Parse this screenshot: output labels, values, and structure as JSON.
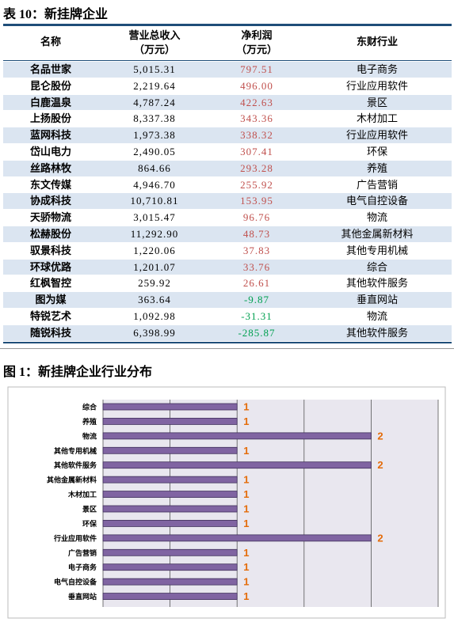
{
  "table": {
    "title": "表 10：新挂牌企业",
    "header": [
      [
        "名称"
      ],
      [
        "营业总收入",
        "（万元）"
      ],
      [
        "净利润",
        "（万元）"
      ],
      [
        "东财行业"
      ]
    ],
    "positive_color": "#c0504d",
    "negative_color": "#00a050",
    "rows": [
      [
        "名品世家",
        "5,015.31",
        "797.51",
        "电子商务"
      ],
      [
        "昆仑股份",
        "2,219.64",
        "496.00",
        "行业应用软件"
      ],
      [
        "白鹿温泉",
        "4,787.24",
        "422.63",
        "景区"
      ],
      [
        "上扬股份",
        "8,337.38",
        "343.36",
        "木材加工"
      ],
      [
        "蓝网科技",
        "1,973.38",
        "338.32",
        "行业应用软件"
      ],
      [
        "岱山电力",
        "2,490.05",
        "307.41",
        "环保"
      ],
      [
        "丝路林牧",
        "864.66",
        "293.28",
        "养殖"
      ],
      [
        "东文传媒",
        "4,946.70",
        "255.92",
        "广告营销"
      ],
      [
        "协成科技",
        "10,710.81",
        "153.95",
        "电气自控设备"
      ],
      [
        "天骄物流",
        "3,015.47",
        "96.76",
        "物流"
      ],
      [
        "松赫股份",
        "11,292.90",
        "48.73",
        "其他金属新材料"
      ],
      [
        "驭景科技",
        "1,220.06",
        "37.83",
        "其他专用机械"
      ],
      [
        "环球优路",
        "1,201.07",
        "33.76",
        "综合"
      ],
      [
        "红枫智控",
        "259.92",
        "26.61",
        "其他软件服务"
      ],
      [
        "图为媒",
        "363.64",
        "-9.87",
        "垂直网站"
      ],
      [
        "特锐艺术",
        "1,092.98",
        "-31.31",
        "物流"
      ],
      [
        "随锐科技",
        "6,398.99",
        "-285.87",
        "其他软件服务"
      ]
    ]
  },
  "figure": {
    "title": "图 1：新挂牌企业行业分布",
    "chart_data": {
      "type": "bar",
      "orientation": "horizontal",
      "color": "#8064a2",
      "label_color": "#e46c0a",
      "categories": [
        "综合",
        "养殖",
        "物流",
        "其他专用机械",
        "其他软件服务",
        "其他金属新材料",
        "木材加工",
        "景区",
        "环保",
        "行业应用软件",
        "广告营销",
        "电子商务",
        "电气自控设备",
        "垂直网站"
      ],
      "values": [
        1,
        1,
        2,
        1,
        2,
        1,
        1,
        1,
        1,
        2,
        1,
        1,
        1,
        1
      ],
      "xlim": [
        0,
        2.5
      ],
      "xticks": [
        0,
        0.5,
        1,
        1.5,
        2,
        2.5
      ],
      "grid": true
    }
  }
}
